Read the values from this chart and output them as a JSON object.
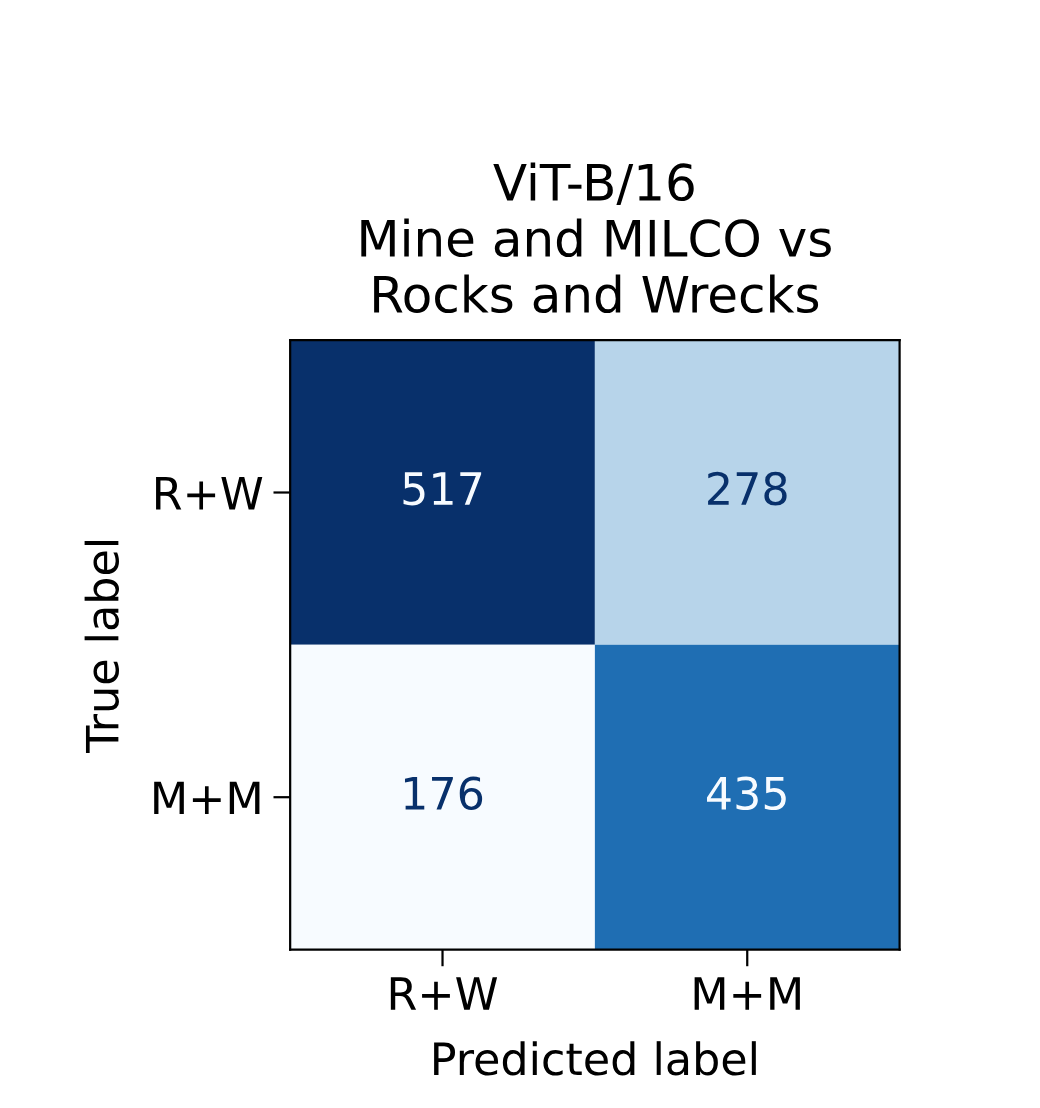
{
  "chart_data": {
    "type": "heatmap",
    "title": "ViT-B/16\nMine and MILCO vs\nRocks and Wrecks",
    "xlabel": "Predicted label",
    "ylabel": "True label",
    "categories": [
      "R+W",
      "M+M"
    ],
    "y_categories": [
      "R+W",
      "M+M"
    ],
    "cells": [
      [
        517,
        278
      ],
      [
        176,
        435
      ]
    ],
    "data_labels": true,
    "grid": false
  }
}
